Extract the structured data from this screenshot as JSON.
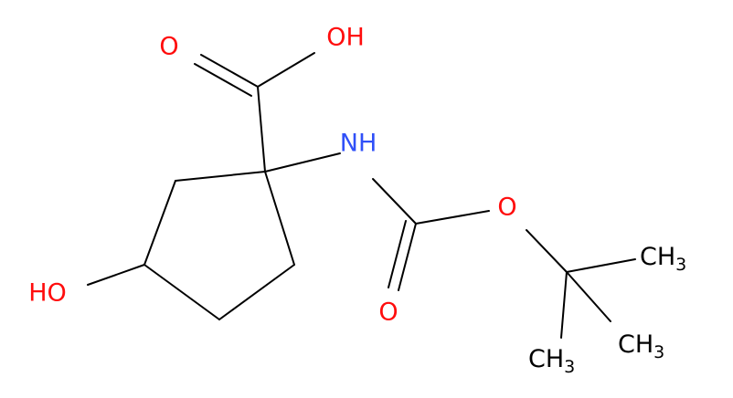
{
  "molecule": {
    "atoms": {
      "carbonyl_o": "O",
      "acid_oh": "OH",
      "amine": "NH",
      "ester_o": "O",
      "carbamate_o": "O",
      "hydroxyl": "HO",
      "methyl_1": {
        "text": "CH",
        "sub": "3"
      },
      "methyl_2": {
        "text": "CH",
        "sub": "3"
      },
      "methyl_3": {
        "text": "CH",
        "sub": "3"
      }
    }
  }
}
